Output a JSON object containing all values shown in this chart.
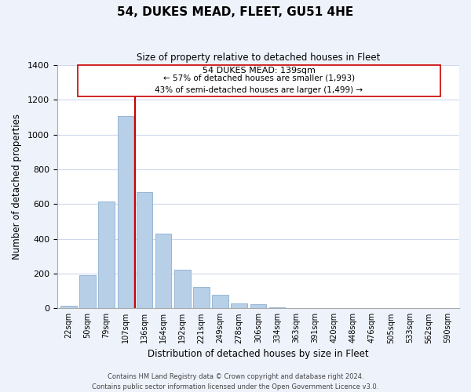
{
  "title": "54, DUKES MEAD, FLEET, GU51 4HE",
  "subtitle": "Size of property relative to detached houses in Fleet",
  "xlabel": "Distribution of detached houses by size in Fleet",
  "ylabel": "Number of detached properties",
  "bar_color": "#b8cfe8",
  "bar_edge_color": "#8ab0d0",
  "background_color": "#eef2fb",
  "plot_bg_color": "#ffffff",
  "grid_color": "#d0d8ee",
  "annotation_line_color": "#cc0000",
  "annotation_box_edge": "#cc0000",
  "tick_labels": [
    "22sqm",
    "50sqm",
    "79sqm",
    "107sqm",
    "136sqm",
    "164sqm",
    "192sqm",
    "221sqm",
    "249sqm",
    "278sqm",
    "306sqm",
    "334sqm",
    "363sqm",
    "391sqm",
    "420sqm",
    "448sqm",
    "476sqm",
    "505sqm",
    "533sqm",
    "562sqm",
    "590sqm"
  ],
  "bar_values": [
    15,
    193,
    615,
    1105,
    670,
    428,
    222,
    122,
    78,
    28,
    22,
    5,
    3,
    2,
    1,
    0,
    0,
    0,
    0,
    0,
    0
  ],
  "property_line_x": 3.5,
  "annotation_text_line1": "54 DUKES MEAD: 139sqm",
  "annotation_text_line2": "← 57% of detached houses are smaller (1,993)",
  "annotation_text_line3": "43% of semi-detached houses are larger (1,499) →",
  "footer_line1": "Contains HM Land Registry data © Crown copyright and database right 2024.",
  "footer_line2": "Contains public sector information licensed under the Open Government Licence v3.0.",
  "ylim": [
    0,
    1400
  ],
  "yticks": [
    0,
    200,
    400,
    600,
    800,
    1000,
    1200,
    1400
  ]
}
